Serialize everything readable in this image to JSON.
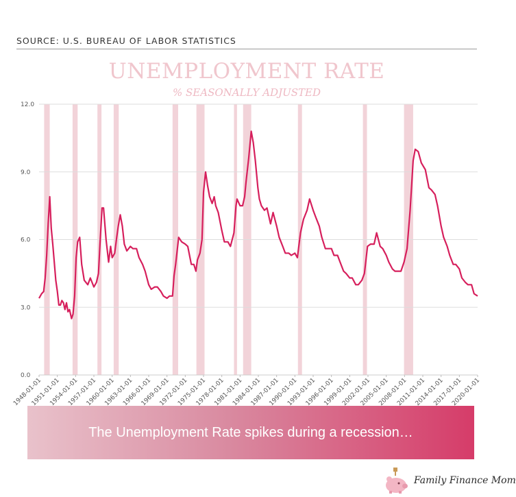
{
  "source_text": "SOURCE: U.S. BUREAU OF LABOR STATISTICS",
  "banner_text": "The Unemployment Rate spikes during a recession…",
  "logo_text": "Family Finance Mom",
  "colors": {
    "line": "#d61f5c",
    "recession": "#f2d3d9",
    "title": "#f0c6cd",
    "grid": "#dddddd"
  },
  "chart_data": {
    "type": "line",
    "title": "UNEMPLOYMENT RATE",
    "subtitle": "% SEASONALLY ADJUSTED",
    "xlabel": "",
    "ylabel": "",
    "ylim": [
      0,
      12
    ],
    "xlim": [
      "1948-01-01",
      "2020-01-01"
    ],
    "y_ticks": [
      "0.0",
      "3.0",
      "6.0",
      "9.0",
      "12.0"
    ],
    "x_ticks": [
      "1948-01-01",
      "1951-01-01",
      "1954-01-01",
      "1957-01-01",
      "1960-01-01",
      "1963-01-01",
      "1966-01-01",
      "1969-01-01",
      "1972-01-01",
      "1975-01-01",
      "1978-01-01",
      "1981-01-01",
      "1984-01-01",
      "1987-01-01",
      "1990-01-01",
      "1993-01-01",
      "1996-01-01",
      "1999-01-01",
      "2002-01-01",
      "2005-01-01",
      "2008-01-01",
      "2011-01-01",
      "2014-01-01",
      "2017-01-01",
      "2020-01-01"
    ],
    "grid": true,
    "recessions": [
      [
        "1948-11-01",
        "1949-10-01"
      ],
      [
        "1953-07-01",
        "1954-05-01"
      ],
      [
        "1957-08-01",
        "1958-04-01"
      ],
      [
        "1960-04-01",
        "1961-02-01"
      ],
      [
        "1969-12-01",
        "1970-11-01"
      ],
      [
        "1973-11-01",
        "1975-03-01"
      ],
      [
        "1980-01-01",
        "1980-07-01"
      ],
      [
        "1981-07-01",
        "1982-11-01"
      ],
      [
        "1990-07-01",
        "1991-03-01"
      ],
      [
        "2001-03-01",
        "2001-11-01"
      ],
      [
        "2007-12-01",
        "2009-06-01"
      ]
    ],
    "series": [
      {
        "values": [
          [
            "1948-01-01",
            3.4
          ],
          [
            "1948-06-01",
            3.6
          ],
          [
            "1948-10-01",
            3.7
          ],
          [
            "1949-01-01",
            4.3
          ],
          [
            "1949-04-01",
            5.3
          ],
          [
            "1949-07-01",
            6.7
          ],
          [
            "1949-10-01",
            7.9
          ],
          [
            "1950-01-01",
            6.5
          ],
          [
            "1950-04-01",
            5.8
          ],
          [
            "1950-07-01",
            5.0
          ],
          [
            "1950-10-01",
            4.2
          ],
          [
            "1951-01-01",
            3.7
          ],
          [
            "1951-04-01",
            3.1
          ],
          [
            "1951-07-01",
            3.1
          ],
          [
            "1951-10-01",
            3.3
          ],
          [
            "1952-01-01",
            3.2
          ],
          [
            "1952-04-01",
            2.9
          ],
          [
            "1952-07-01",
            3.2
          ],
          [
            "1952-10-01",
            2.8
          ],
          [
            "1953-01-01",
            2.9
          ],
          [
            "1953-05-01",
            2.5
          ],
          [
            "1953-08-01",
            2.7
          ],
          [
            "1953-11-01",
            3.5
          ],
          [
            "1954-02-01",
            5.2
          ],
          [
            "1954-05-01",
            5.9
          ],
          [
            "1954-09-01",
            6.1
          ],
          [
            "1955-01-01",
            4.9
          ],
          [
            "1955-06-01",
            4.2
          ],
          [
            "1956-01-01",
            4.0
          ],
          [
            "1956-06-01",
            4.3
          ],
          [
            "1957-01-01",
            3.9
          ],
          [
            "1957-06-01",
            4.1
          ],
          [
            "1957-10-01",
            4.5
          ],
          [
            "1958-01-01",
            5.8
          ],
          [
            "1958-05-01",
            7.4
          ],
          [
            "1958-08-01",
            7.4
          ],
          [
            "1959-01-01",
            6.0
          ],
          [
            "1959-06-01",
            5.0
          ],
          [
            "1959-10-01",
            5.7
          ],
          [
            "1960-01-01",
            5.2
          ],
          [
            "1960-06-01",
            5.4
          ],
          [
            "1960-10-01",
            6.1
          ],
          [
            "1961-01-01",
            6.6
          ],
          [
            "1961-05-01",
            7.1
          ],
          [
            "1961-09-01",
            6.6
          ],
          [
            "1962-01-01",
            5.8
          ],
          [
            "1962-06-01",
            5.5
          ],
          [
            "1963-01-01",
            5.7
          ],
          [
            "1963-06-01",
            5.6
          ],
          [
            "1964-01-01",
            5.6
          ],
          [
            "1964-06-01",
            5.2
          ],
          [
            "1965-01-01",
            4.9
          ],
          [
            "1965-06-01",
            4.6
          ],
          [
            "1966-01-01",
            4.0
          ],
          [
            "1966-06-01",
            3.8
          ],
          [
            "1967-01-01",
            3.9
          ],
          [
            "1967-06-01",
            3.9
          ],
          [
            "1968-01-01",
            3.7
          ],
          [
            "1968-06-01",
            3.5
          ],
          [
            "1969-01-01",
            3.4
          ],
          [
            "1969-06-01",
            3.5
          ],
          [
            "1969-12-01",
            3.5
          ],
          [
            "1970-03-01",
            4.4
          ],
          [
            "1970-06-01",
            4.9
          ],
          [
            "1970-09-01",
            5.5
          ],
          [
            "1970-12-01",
            6.1
          ],
          [
            "1971-06-01",
            5.9
          ],
          [
            "1972-01-01",
            5.8
          ],
          [
            "1972-06-01",
            5.7
          ],
          [
            "1973-01-01",
            4.9
          ],
          [
            "1973-06-01",
            4.9
          ],
          [
            "1973-10-01",
            4.6
          ],
          [
            "1974-01-01",
            5.1
          ],
          [
            "1974-06-01",
            5.4
          ],
          [
            "1974-10-01",
            6.0
          ],
          [
            "1975-01-01",
            8.1
          ],
          [
            "1975-05-01",
            9.0
          ],
          [
            "1975-09-01",
            8.4
          ],
          [
            "1976-01-01",
            7.9
          ],
          [
            "1976-06-01",
            7.6
          ],
          [
            "1976-10-01",
            7.9
          ],
          [
            "1977-01-01",
            7.5
          ],
          [
            "1977-06-01",
            7.2
          ],
          [
            "1978-01-01",
            6.4
          ],
          [
            "1978-06-01",
            5.9
          ],
          [
            "1979-01-01",
            5.9
          ],
          [
            "1979-06-01",
            5.7
          ],
          [
            "1980-01-01",
            6.3
          ],
          [
            "1980-05-01",
            7.5
          ],
          [
            "1980-07-01",
            7.8
          ],
          [
            "1981-01-01",
            7.5
          ],
          [
            "1981-06-01",
            7.5
          ],
          [
            "1981-10-01",
            7.9
          ],
          [
            "1982-01-01",
            8.6
          ],
          [
            "1982-06-01",
            9.6
          ],
          [
            "1982-11-01",
            10.8
          ],
          [
            "1983-03-01",
            10.3
          ],
          [
            "1983-07-01",
            9.5
          ],
          [
            "1983-12-01",
            8.3
          ],
          [
            "1984-03-01",
            7.8
          ],
          [
            "1984-07-01",
            7.5
          ],
          [
            "1985-01-01",
            7.3
          ],
          [
            "1985-06-01",
            7.4
          ],
          [
            "1986-01-01",
            6.7
          ],
          [
            "1986-06-01",
            7.2
          ],
          [
            "1987-01-01",
            6.6
          ],
          [
            "1987-06-01",
            6.1
          ],
          [
            "1988-01-01",
            5.7
          ],
          [
            "1988-06-01",
            5.4
          ],
          [
            "1989-01-01",
            5.4
          ],
          [
            "1989-06-01",
            5.3
          ],
          [
            "1990-01-01",
            5.4
          ],
          [
            "1990-06-01",
            5.2
          ],
          [
            "1990-12-01",
            6.3
          ],
          [
            "1991-06-01",
            6.9
          ],
          [
            "1992-01-01",
            7.3
          ],
          [
            "1992-06-01",
            7.8
          ],
          [
            "1993-01-01",
            7.3
          ],
          [
            "1993-06-01",
            7.0
          ],
          [
            "1994-01-01",
            6.6
          ],
          [
            "1994-06-01",
            6.1
          ],
          [
            "1995-01-01",
            5.6
          ],
          [
            "1995-06-01",
            5.6
          ],
          [
            "1996-01-01",
            5.6
          ],
          [
            "1996-06-01",
            5.3
          ],
          [
            "1997-01-01",
            5.3
          ],
          [
            "1997-06-01",
            5.0
          ],
          [
            "1998-01-01",
            4.6
          ],
          [
            "1998-06-01",
            4.5
          ],
          [
            "1999-01-01",
            4.3
          ],
          [
            "1999-06-01",
            4.3
          ],
          [
            "2000-01-01",
            4.0
          ],
          [
            "2000-06-01",
            4.0
          ],
          [
            "2001-01-01",
            4.2
          ],
          [
            "2001-06-01",
            4.5
          ],
          [
            "2001-12-01",
            5.7
          ],
          [
            "2002-06-01",
            5.8
          ],
          [
            "2003-01-01",
            5.8
          ],
          [
            "2003-06-01",
            6.3
          ],
          [
            "2004-01-01",
            5.7
          ],
          [
            "2004-06-01",
            5.6
          ],
          [
            "2005-01-01",
            5.3
          ],
          [
            "2005-06-01",
            5.0
          ],
          [
            "2006-01-01",
            4.7
          ],
          [
            "2006-06-01",
            4.6
          ],
          [
            "2007-01-01",
            4.6
          ],
          [
            "2007-06-01",
            4.6
          ],
          [
            "2007-12-01",
            5.0
          ],
          [
            "2008-06-01",
            5.6
          ],
          [
            "2008-12-01",
            7.3
          ],
          [
            "2009-06-01",
            9.5
          ],
          [
            "2009-10-01",
            10.0
          ],
          [
            "2010-04-01",
            9.9
          ],
          [
            "2010-10-01",
            9.4
          ],
          [
            "2011-06-01",
            9.1
          ],
          [
            "2012-01-01",
            8.3
          ],
          [
            "2012-06-01",
            8.2
          ],
          [
            "2013-01-01",
            8.0
          ],
          [
            "2013-06-01",
            7.5
          ],
          [
            "2014-01-01",
            6.6
          ],
          [
            "2014-06-01",
            6.1
          ],
          [
            "2015-01-01",
            5.7
          ],
          [
            "2015-06-01",
            5.3
          ],
          [
            "2016-01-01",
            4.9
          ],
          [
            "2016-06-01",
            4.9
          ],
          [
            "2017-01-01",
            4.7
          ],
          [
            "2017-06-01",
            4.3
          ],
          [
            "2018-01-01",
            4.1
          ],
          [
            "2018-06-01",
            4.0
          ],
          [
            "2019-01-01",
            4.0
          ],
          [
            "2019-06-01",
            3.6
          ],
          [
            "2020-01-01",
            3.5
          ]
        ]
      }
    ]
  }
}
